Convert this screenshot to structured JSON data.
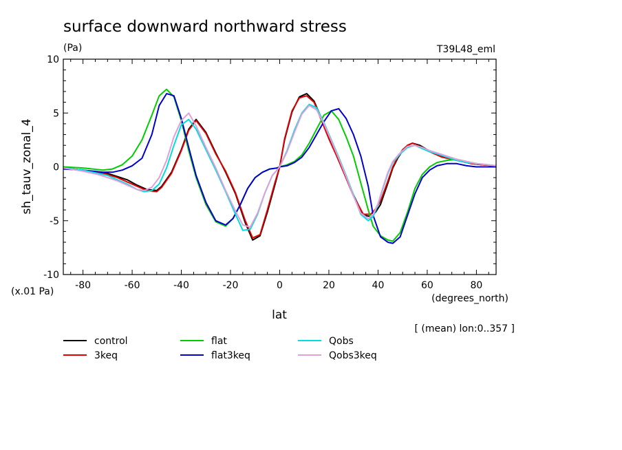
{
  "chart_data": {
    "type": "line",
    "title": "surface downward northward stress",
    "units_label": "(Pa)",
    "run_label": "T39L48_eml",
    "ylabel": "sh_tauv_zonal_4",
    "xlabel": "lat",
    "x_units": "(degrees_north)",
    "y_scale_note": "(x.01 Pa)",
    "footnote": "[ (mean) lon:0..357 ]",
    "xlim": [
      -88,
      88
    ],
    "ylim": [
      -10,
      10
    ],
    "x_ticks": [
      -80,
      -60,
      -40,
      -20,
      0,
      20,
      40,
      60,
      80
    ],
    "y_ticks": [
      -10,
      -5,
      0,
      5,
      10
    ],
    "grid": false,
    "legend_position": "bottom",
    "series": [
      {
        "name": "control",
        "color": "#000000",
        "x": [
          -88,
          -80,
          -74,
          -70,
          -66,
          -62,
          -58,
          -54,
          -50,
          -48,
          -44,
          -40,
          -37,
          -34,
          -30,
          -26,
          -22,
          -18,
          -14,
          -11,
          -8,
          -5,
          -2,
          0,
          2,
          5,
          8,
          11,
          14,
          17,
          20,
          23,
          26,
          30,
          34,
          37,
          39,
          41,
          44,
          46,
          48,
          50,
          52,
          54,
          57,
          60,
          63,
          66,
          70,
          74,
          78,
          82,
          88
        ],
        "y": [
          -0.1,
          -0.3,
          -0.5,
          -0.6,
          -0.9,
          -1.2,
          -1.7,
          -2.1,
          -2.2,
          -1.8,
          -0.5,
          1.6,
          3.5,
          4.4,
          3.2,
          1.3,
          -0.5,
          -2.5,
          -5.2,
          -6.8,
          -6.4,
          -4.2,
          -1.7,
          0,
          2.5,
          5.1,
          6.5,
          6.8,
          6.1,
          4.5,
          2.7,
          1.2,
          -0.4,
          -2.6,
          -4.5,
          -4.6,
          -4.2,
          -3.5,
          -1.5,
          -0.1,
          0.8,
          1.5,
          2.0,
          2.2,
          2.0,
          1.6,
          1.3,
          1.0,
          0.8,
          0.5,
          0.3,
          0.2,
          0.1
        ]
      },
      {
        "name": "3keq",
        "color": "#e00000",
        "x": [
          -88,
          -80,
          -74,
          -70,
          -66,
          -62,
          -58,
          -54,
          -50,
          -48,
          -44,
          -40,
          -37,
          -34,
          -30,
          -26,
          -22,
          -18,
          -14,
          -11,
          -8,
          -5,
          -2,
          0,
          2,
          5,
          8,
          11,
          14,
          17,
          20,
          23,
          26,
          30,
          34,
          37,
          39,
          41,
          44,
          46,
          48,
          50,
          52,
          54,
          57,
          60,
          63,
          66,
          70,
          74,
          78,
          82,
          88
        ],
        "y": [
          -0.1,
          -0.3,
          -0.5,
          -0.7,
          -1.0,
          -1.4,
          -1.8,
          -2.2,
          -2.3,
          -1.9,
          -0.6,
          1.5,
          3.4,
          4.3,
          3.1,
          1.2,
          -0.4,
          -2.4,
          -5.0,
          -6.6,
          -6.3,
          -4.0,
          -1.5,
          0,
          2.6,
          5.2,
          6.4,
          6.6,
          6.0,
          4.3,
          2.6,
          1.1,
          -0.5,
          -2.7,
          -4.4,
          -4.4,
          -3.9,
          -3.2,
          -1.3,
          0.0,
          0.9,
          1.6,
          2.0,
          2.2,
          1.9,
          1.5,
          1.2,
          0.9,
          0.7,
          0.5,
          0.3,
          0.2,
          0.1
        ]
      },
      {
        "name": "flat",
        "color": "#00cc00",
        "x": [
          -88,
          -80,
          -76,
          -72,
          -68,
          -64,
          -60,
          -56,
          -52,
          -49,
          -46,
          -43,
          -40,
          -37,
          -34,
          -30,
          -26,
          -22,
          -19,
          -16,
          -13,
          -10,
          -7,
          -4,
          -1,
          0,
          3,
          6,
          9,
          12,
          15,
          18,
          21,
          24,
          27,
          30,
          33,
          36,
          38,
          41,
          44,
          46,
          49,
          52,
          55,
          58,
          61,
          64,
          68,
          72,
          76,
          80,
          88
        ],
        "y": [
          0,
          -0.1,
          -0.2,
          -0.3,
          -0.2,
          0.2,
          1.0,
          2.5,
          4.8,
          6.6,
          7.2,
          6.5,
          4.3,
          1.5,
          -1.0,
          -3.5,
          -5.1,
          -5.5,
          -4.8,
          -3.5,
          -2.0,
          -1.0,
          -0.5,
          -0.2,
          -0.1,
          0,
          0.2,
          0.5,
          1.1,
          2.2,
          3.5,
          4.8,
          5.2,
          4.4,
          2.8,
          1.0,
          -1.5,
          -4.0,
          -5.5,
          -6.4,
          -6.8,
          -6.9,
          -6.1,
          -4.2,
          -2.0,
          -0.7,
          0.0,
          0.4,
          0.6,
          0.7,
          0.5,
          0.3,
          0.1
        ]
      },
      {
        "name": "flat3keq",
        "color": "#0000cc",
        "x": [
          -88,
          -80,
          -76,
          -72,
          -68,
          -64,
          -60,
          -56,
          -52,
          -49,
          -46,
          -43,
          -40,
          -37,
          -34,
          -30,
          -26,
          -22,
          -19,
          -16,
          -13,
          -10,
          -7,
          -4,
          -1,
          0,
          3,
          6,
          9,
          12,
          15,
          18,
          21,
          24,
          27,
          30,
          33,
          36,
          38,
          41,
          44,
          46,
          49,
          52,
          55,
          58,
          61,
          64,
          68,
          72,
          76,
          80,
          88
        ],
        "y": [
          -0.2,
          -0.3,
          -0.4,
          -0.5,
          -0.5,
          -0.3,
          0.1,
          0.8,
          3.0,
          5.7,
          6.8,
          6.6,
          4.5,
          1.8,
          -0.8,
          -3.3,
          -5.0,
          -5.4,
          -4.8,
          -3.5,
          -2.0,
          -1.0,
          -0.5,
          -0.2,
          -0.1,
          0,
          0.1,
          0.4,
          0.9,
          1.8,
          3.0,
          4.2,
          5.2,
          5.4,
          4.5,
          3.0,
          1.0,
          -1.8,
          -4.5,
          -6.5,
          -7.0,
          -7.1,
          -6.5,
          -4.5,
          -2.5,
          -1.0,
          -0.3,
          0.1,
          0.3,
          0.3,
          0.1,
          0.0,
          0.0
        ]
      },
      {
        "name": "Qobs",
        "color": "#00dddd",
        "x": [
          -88,
          -80,
          -74,
          -70,
          -66,
          -62,
          -58,
          -55,
          -52,
          -49,
          -46,
          -43,
          -40,
          -37,
          -34,
          -30,
          -26,
          -22,
          -18,
          -15,
          -12,
          -9,
          -6,
          -3,
          0,
          3,
          6,
          9,
          12,
          15,
          18,
          21,
          24,
          27,
          30,
          33,
          36,
          38,
          40,
          42,
          44,
          46,
          49,
          52,
          55,
          58,
          61,
          64,
          68,
          72,
          76,
          80,
          88
        ],
        "y": [
          -0.1,
          -0.3,
          -0.6,
          -0.8,
          -1.2,
          -1.6,
          -2.1,
          -2.3,
          -2.2,
          -1.6,
          -0.1,
          2.0,
          3.9,
          4.4,
          3.5,
          1.6,
          -0.3,
          -2.3,
          -4.4,
          -5.9,
          -5.8,
          -4.4,
          -2.4,
          -0.8,
          0,
          1.5,
          3.4,
          5.0,
          5.8,
          5.5,
          4.1,
          2.5,
          0.9,
          -0.8,
          -2.6,
          -4.4,
          -5.0,
          -4.6,
          -3.5,
          -2.0,
          -0.6,
          0.4,
          1.2,
          1.8,
          2.0,
          1.7,
          1.4,
          1.2,
          0.9,
          0.6,
          0.4,
          0.3,
          0.1
        ]
      },
      {
        "name": "Qobs3keq",
        "color": "#dda0dd",
        "x": [
          -88,
          -80,
          -74,
          -70,
          -66,
          -62,
          -58,
          -55,
          -52,
          -49,
          -46,
          -43,
          -40,
          -37,
          -34,
          -30,
          -26,
          -22,
          -18,
          -15,
          -12,
          -9,
          -6,
          -3,
          0,
          3,
          6,
          9,
          12,
          15,
          18,
          21,
          24,
          27,
          30,
          33,
          36,
          38,
          40,
          42,
          44,
          46,
          49,
          52,
          55,
          58,
          61,
          64,
          68,
          72,
          76,
          80,
          88
        ],
        "y": [
          -0.1,
          -0.4,
          -0.7,
          -1.0,
          -1.3,
          -1.7,
          -2.1,
          -2.2,
          -1.9,
          -1.0,
          0.6,
          2.8,
          4.3,
          5.0,
          3.8,
          1.8,
          -0.1,
          -2.2,
          -4.1,
          -5.4,
          -5.6,
          -4.3,
          -2.4,
          -0.8,
          0,
          1.4,
          3.2,
          4.9,
          5.7,
          5.3,
          4.0,
          2.4,
          0.8,
          -0.9,
          -2.7,
          -4.3,
          -4.8,
          -4.4,
          -3.4,
          -1.9,
          -0.5,
          0.5,
          1.3,
          1.9,
          2.0,
          1.8,
          1.5,
          1.3,
          1.0,
          0.7,
          0.5,
          0.3,
          0.1
        ]
      }
    ]
  }
}
